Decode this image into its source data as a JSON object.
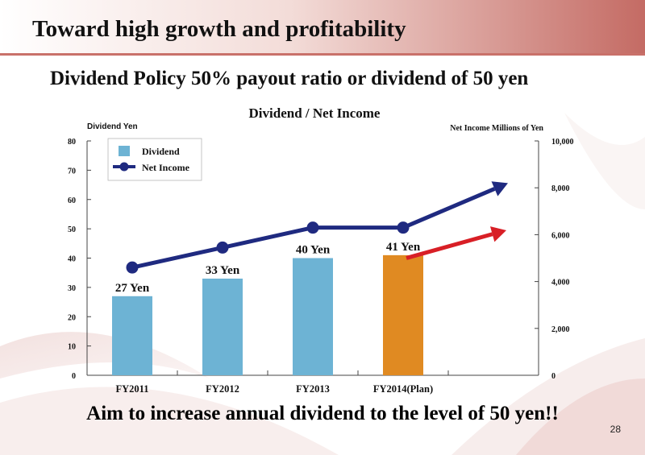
{
  "slide": {
    "title": "Toward high growth and profitability",
    "subtitle": "Dividend Policy    50% payout ratio or dividend of 50 yen",
    "bottom_message": "Aim to increase annual dividend to the level of 50 yen!!",
    "page_number": "28"
  },
  "colors": {
    "dividend_bar": "#6db3d4",
    "plan_bar": "#e08a22",
    "net_income_line": "#1f2a80",
    "growth_arrow": "#d81f26",
    "header_band": "#c9716a"
  },
  "chart_data": {
    "type": "bar",
    "title": "Dividend / Net Income",
    "categories": [
      "FY2011",
      "FY2012",
      "FY2013",
      "FY2014(Plan)"
    ],
    "ylabel": "Dividend  Yen",
    "y2label": "Net Income  Millions of Yen",
    "ylim": [
      0,
      80
    ],
    "y2lim": [
      0,
      10000
    ],
    "yticks": [
      "0",
      "10",
      "20",
      "30",
      "40",
      "50",
      "60",
      "70",
      "80"
    ],
    "y2ticks": [
      "0",
      "2,000",
      "4,000",
      "6,000",
      "8,000",
      "10,000"
    ],
    "legend": {
      "position": "top-left",
      "dividend": "Dividend",
      "net_income": "Net Income"
    },
    "series": [
      {
        "name": "Dividend",
        "type": "bar",
        "axis": "left",
        "values": [
          27,
          33,
          40,
          41
        ],
        "labels": [
          "27 Yen",
          "33 Yen",
          "40 Yen",
          "41 Yen"
        ]
      },
      {
        "name": "Net Income",
        "type": "line",
        "axis": "right",
        "values": [
          4600,
          5450,
          6300,
          6300
        ],
        "projected_next": 8200
      }
    ],
    "plan_arrow": {
      "from": 40,
      "to": 49.5
    }
  }
}
